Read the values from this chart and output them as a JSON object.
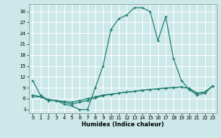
{
  "title": "",
  "xlabel": "Humidex (Indice chaleur)",
  "background_color": "#cce8e8",
  "grid_color": "#ffffff",
  "line_color": "#1a7a6e",
  "xlim": [
    -0.5,
    23.5
  ],
  "ylim": [
    2,
    32
  ],
  "xticks": [
    0,
    1,
    2,
    3,
    4,
    5,
    6,
    7,
    8,
    9,
    10,
    11,
    12,
    13,
    14,
    15,
    16,
    17,
    18,
    19,
    20,
    21,
    22,
    23
  ],
  "yticks": [
    3,
    6,
    9,
    12,
    15,
    18,
    21,
    24,
    27,
    30
  ],
  "series1_y": [
    11,
    7,
    5.5,
    5.5,
    4.5,
    4,
    3,
    3,
    9,
    15,
    25,
    28,
    29,
    31,
    31,
    30,
    22,
    28.5,
    17,
    11,
    8.5,
    7,
    7.5,
    9.5
  ],
  "series2_y": [
    7.0,
    6.5,
    5.5,
    5.5,
    5.2,
    5.0,
    5.5,
    6.0,
    6.5,
    7.0,
    7.2,
    7.5,
    7.8,
    8.0,
    8.3,
    8.5,
    8.7,
    8.9,
    9.0,
    9.2,
    8.8,
    7.5,
    7.8,
    9.5
  ],
  "series3_y": [
    6.5,
    6.5,
    5.8,
    5.5,
    5.0,
    4.5,
    5.0,
    5.5,
    6.2,
    6.8,
    7.2,
    7.5,
    7.8,
    8.0,
    8.3,
    8.5,
    8.7,
    8.9,
    9.0,
    9.2,
    8.8,
    7.5,
    7.8,
    9.5
  ]
}
